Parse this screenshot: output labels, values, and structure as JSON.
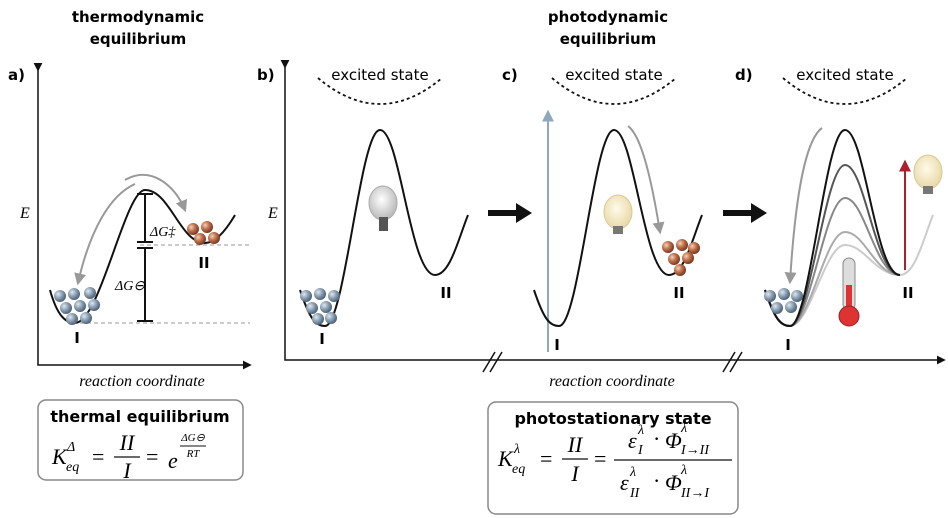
{
  "headers": {
    "thermo": [
      "thermodynamic",
      "equilibrium"
    ],
    "photo": [
      "photodynamic",
      "equilibrium"
    ]
  },
  "panels": [
    {
      "label": "a)",
      "axis": "E",
      "states": [
        "I",
        "II"
      ],
      "barriers": [
        "ΔG‡",
        "ΔG⊖"
      ]
    },
    {
      "label": "b)",
      "axis": "E",
      "excited": "excited state",
      "states": [
        "I",
        "II"
      ]
    },
    {
      "label": "c)",
      "excited": "excited state",
      "states": [
        "I",
        "II"
      ]
    },
    {
      "label": "d)",
      "excited": "excited state",
      "states": [
        "I",
        "II"
      ]
    }
  ],
  "x_axis_labels": [
    "reaction coordinate",
    "reaction coordinate"
  ],
  "boxes": [
    {
      "title": "thermal equilibrium",
      "equation": {
        "symbol": "K",
        "sub": "eq",
        "sup": "Δ",
        "eq": "=",
        "ratio": [
          "II",
          "I"
        ],
        "base": "e",
        "exponent": [
          "ΔG⊖",
          "RT"
        ]
      }
    },
    {
      "title": "photostationary state",
      "equation": {
        "symbol": "K",
        "sub": "eq",
        "sup": "λ",
        "eq": "=",
        "ratio": [
          "II",
          "I"
        ],
        "dot": "·",
        "numerator": [
          {
            "sym": "ε",
            "sub": "I",
            "sup": "λ"
          },
          {
            "sym": "Φ",
            "sub": "I→II",
            "sup": "λ"
          }
        ],
        "denominator": [
          {
            "sym": "ε",
            "sub": "II",
            "sup": "λ"
          },
          {
            "sym": "Φ",
            "sub": "II→I",
            "sup": "λ"
          }
        ]
      }
    }
  ]
}
